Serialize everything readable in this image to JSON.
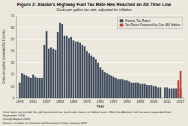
{
  "chart_data": {
    "type": "bar",
    "title": "Figure 3: Alaska's Highway Fuel Tax Rate Has Reached an All-Time Low",
    "subtitle": "Costs per gallon tax rate, adjusted for inflation",
    "xlabel": "Year",
    "ylabel": "Cents per gallon (constant 2016 levels)",
    "footnote": "Chart does not include the spill prevention tax, local sales taxes, or federal taxes. Note that Alaska's fuel tax was suspended from September 2008\nthrough August 2009.",
    "source": "Source: Institute on Taxation and Economic Policy, January 2017",
    "x": [
      1945,
      1946,
      1947,
      1948,
      1949,
      1950,
      1951,
      1952,
      1953,
      1954,
      1955,
      1956,
      1957,
      1958,
      1959,
      1960,
      1961,
      1962,
      1963,
      1964,
      1965,
      1966,
      1967,
      1968,
      1969,
      1970,
      1971,
      1972,
      1973,
      1974,
      1975,
      1976,
      1977,
      1978,
      1979,
      1980,
      1981,
      1982,
      1983,
      1984,
      1985,
      1986,
      1987,
      1988,
      1989,
      1990,
      1991,
      1992,
      1993,
      1994,
      1995,
      1996,
      1997,
      1998,
      1999,
      2000,
      2001,
      2002,
      2003,
      2004,
      2005,
      2006,
      2007,
      2008,
      2009,
      2010,
      2011,
      2012,
      2013,
      2014,
      2015,
      2016,
      2017
    ],
    "series": [
      {
        "name": "Historic Tax Rates",
        "color": "#3d4a5c",
        "values": [
          13,
          21,
          20,
          19,
          18,
          17,
          20,
          18,
          17,
          17,
          17,
          45,
          57,
          42,
          43,
          42,
          41,
          56,
          64,
          63,
          53,
          53,
          51,
          52,
          49,
          48,
          48,
          47,
          45,
          44,
          40,
          38,
          36,
          35,
          33,
          30,
          26,
          24,
          22,
          21,
          20,
          19,
          18,
          17,
          16,
          16,
          16,
          15,
          15,
          14,
          13,
          13,
          13,
          13,
          12,
          12,
          12,
          11,
          11,
          11,
          10,
          10,
          9,
          9,
          0,
          9,
          9,
          8,
          8,
          8,
          8,
          8,
          8
        ]
      },
      {
        "name": "Tax Rates Proposed by Gov. Bill Walker",
        "color": "#c0392b",
        "values": [
          0,
          0,
          0,
          0,
          0,
          0,
          0,
          0,
          0,
          0,
          0,
          0,
          0,
          0,
          0,
          0,
          0,
          0,
          0,
          0,
          0,
          0,
          0,
          0,
          0,
          0,
          0,
          0,
          0,
          0,
          0,
          0,
          0,
          0,
          0,
          0,
          0,
          0,
          0,
          0,
          0,
          0,
          0,
          0,
          0,
          0,
          0,
          0,
          0,
          0,
          0,
          0,
          0,
          0,
          0,
          0,
          0,
          0,
          0,
          0,
          0,
          0,
          0,
          0,
          0,
          0,
          0,
          0,
          0,
          0,
          0,
          15,
          23
        ]
      }
    ],
    "xlim": [
      1943.5,
      2018.5
    ],
    "xticks": [
      1945,
      1951,
      1957,
      1963,
      1969,
      1975,
      1981,
      1987,
      1993,
      1999,
      2005,
      2011,
      2017
    ],
    "ylim": [
      0,
      70
    ],
    "yticks": [
      0,
      10,
      20,
      30,
      40,
      50,
      60,
      70
    ],
    "grid": true,
    "legend": "upper right"
  }
}
